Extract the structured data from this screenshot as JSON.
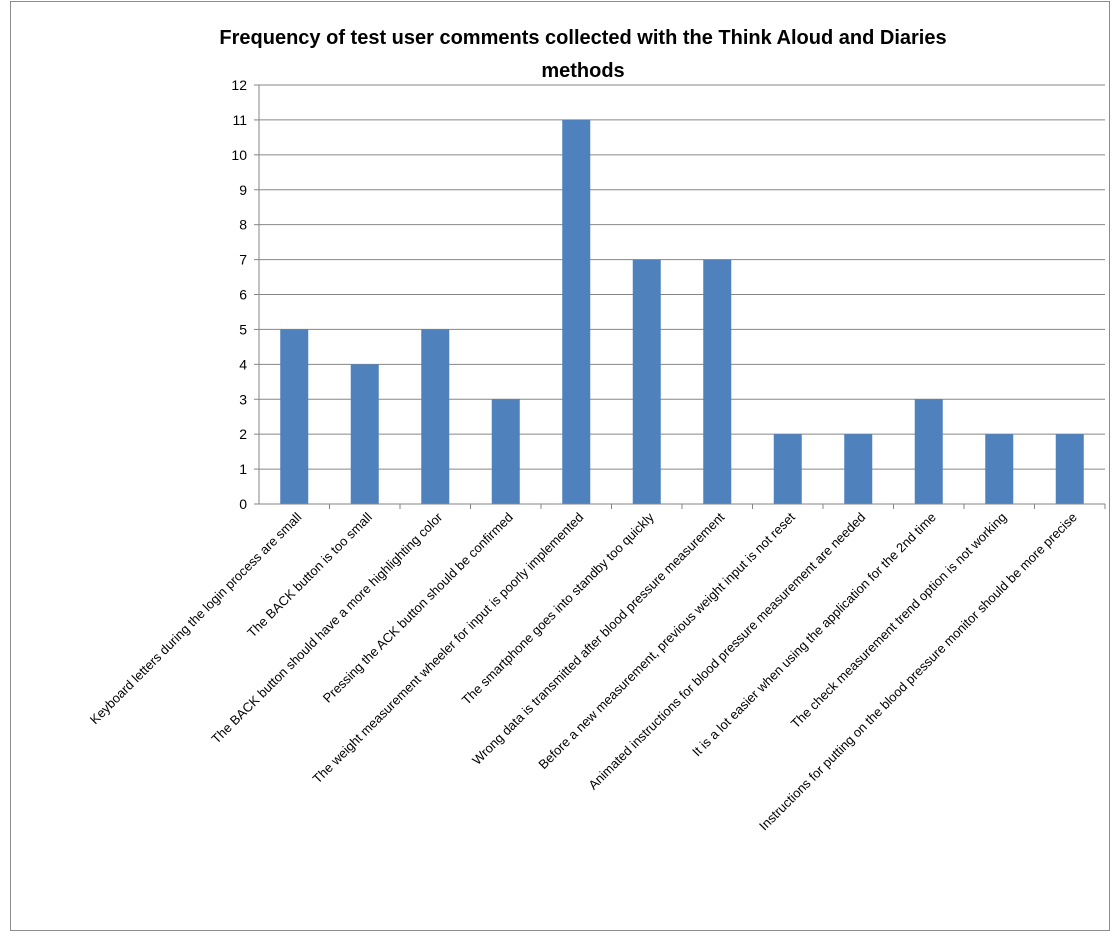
{
  "chart_data": {
    "type": "bar",
    "title_lines": [
      "Frequency of test user comments collected with the Think Aloud and Diaries",
      "methods"
    ],
    "xlabel": "",
    "ylabel": "",
    "ylim": [
      0,
      12
    ],
    "yticks": [
      "0",
      "1",
      "2",
      "3",
      "4",
      "5",
      "6",
      "7",
      "8",
      "9",
      "10",
      "11",
      "12"
    ],
    "grid": true,
    "legend": "none",
    "bar_color": "#4f81bd",
    "categories": [
      "Keyboard letters during the login process are small",
      "The BACK button is too small",
      "The BACK button should have a more highlighting color",
      "Pressing the ACK button should be confirmed",
      "The weight measurement wheeler for input is poorly implemented",
      "The smartphone goes into standby too quickly",
      "Wrong data is transmitted after blood pressure measurement",
      "Before a new measurement, previous weight input is not reset",
      "Animated instructions for blood pressure measurement are needed",
      "It is a lot easier when using the application for the 2nd time",
      "The check measurement trend option is not working",
      "Instructions for putting on the blood pressure monitor should be more precise"
    ],
    "values": [
      5,
      4,
      5,
      3,
      11,
      7,
      7,
      2,
      2,
      3,
      2,
      2
    ]
  }
}
